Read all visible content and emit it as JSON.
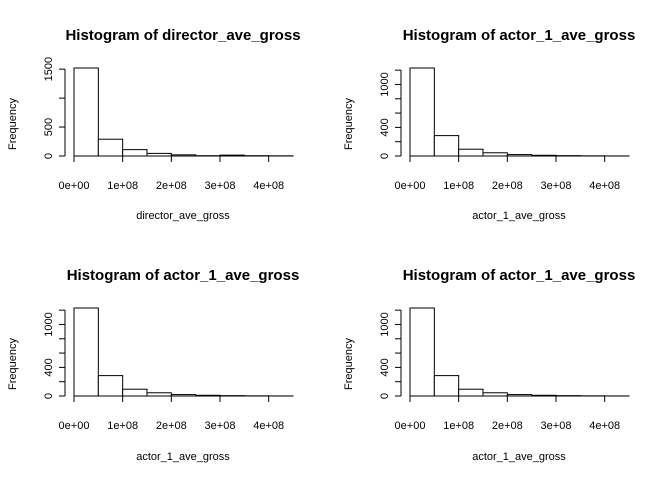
{
  "chart_data": [
    {
      "type": "bar",
      "title": "Histogram of director_ave_gross",
      "xlabel": "director_ave_gross",
      "ylabel": "Frequency",
      "bin_edges": [
        0,
        50000000,
        100000000,
        150000000,
        200000000,
        250000000,
        300000000,
        350000000,
        400000000,
        450000000
      ],
      "values": [
        1520,
        290,
        110,
        45,
        20,
        5,
        15,
        5,
        3
      ],
      "xlim": [
        0,
        450000000
      ],
      "ylim": [
        0,
        1520
      ],
      "xticks": [
        0,
        100000000,
        200000000,
        300000000,
        400000000
      ],
      "xtick_labels": [
        "0e+00",
        "1e+08",
        "2e+08",
        "3e+08",
        "4e+08"
      ],
      "yticks": [
        0,
        500,
        1000,
        1500
      ],
      "ytick_labels": [
        "0",
        "500",
        "",
        "1500"
      ]
    },
    {
      "type": "bar",
      "title": "Histogram of actor_1_ave_gross",
      "xlabel": "actor_1_ave_gross",
      "ylabel": "Frequency",
      "bin_edges": [
        0,
        50000000,
        100000000,
        150000000,
        200000000,
        250000000,
        300000000,
        350000000,
        400000000,
        450000000
      ],
      "values": [
        1230,
        285,
        95,
        45,
        20,
        10,
        5,
        2,
        1
      ],
      "xlim": [
        0,
        450000000
      ],
      "ylim": [
        0,
        1230
      ],
      "xticks": [
        0,
        100000000,
        200000000,
        300000000,
        400000000
      ],
      "xtick_labels": [
        "0e+00",
        "1e+08",
        "2e+08",
        "3e+08",
        "4e+08"
      ],
      "yticks": [
        0,
        200,
        400,
        600,
        800,
        1000,
        1200
      ],
      "ytick_labels": [
        "0",
        "",
        "400",
        "",
        "",
        "1000",
        ""
      ]
    },
    {
      "type": "bar",
      "title": "Histogram of actor_1_ave_gross",
      "xlabel": "actor_1_ave_gross",
      "ylabel": "Frequency",
      "bin_edges": [
        0,
        50000000,
        100000000,
        150000000,
        200000000,
        250000000,
        300000000,
        350000000,
        400000000,
        450000000
      ],
      "values": [
        1230,
        285,
        95,
        45,
        20,
        10,
        5,
        2,
        1
      ],
      "xlim": [
        0,
        450000000
      ],
      "ylim": [
        0,
        1230
      ],
      "xticks": [
        0,
        100000000,
        200000000,
        300000000,
        400000000
      ],
      "xtick_labels": [
        "0e+00",
        "1e+08",
        "2e+08",
        "3e+08",
        "4e+08"
      ],
      "yticks": [
        0,
        200,
        400,
        600,
        800,
        1000,
        1200
      ],
      "ytick_labels": [
        "0",
        "",
        "400",
        "",
        "",
        "1000",
        ""
      ]
    },
    {
      "type": "bar",
      "title": "Histogram of actor_1_ave_gross",
      "xlabel": "actor_1_ave_gross",
      "ylabel": "Frequency",
      "bin_edges": [
        0,
        50000000,
        100000000,
        150000000,
        200000000,
        250000000,
        300000000,
        350000000,
        400000000,
        450000000
      ],
      "values": [
        1230,
        285,
        95,
        45,
        20,
        10,
        5,
        2,
        1
      ],
      "xlim": [
        0,
        450000000
      ],
      "ylim": [
        0,
        1230
      ],
      "xticks": [
        0,
        100000000,
        200000000,
        300000000,
        400000000
      ],
      "xtick_labels": [
        "0e+00",
        "1e+08",
        "2e+08",
        "3e+08",
        "4e+08"
      ],
      "yticks": [
        0,
        200,
        400,
        600,
        800,
        1000,
        1200
      ],
      "ytick_labels": [
        "0",
        "",
        "400",
        "",
        "",
        "1000",
        ""
      ]
    }
  ]
}
